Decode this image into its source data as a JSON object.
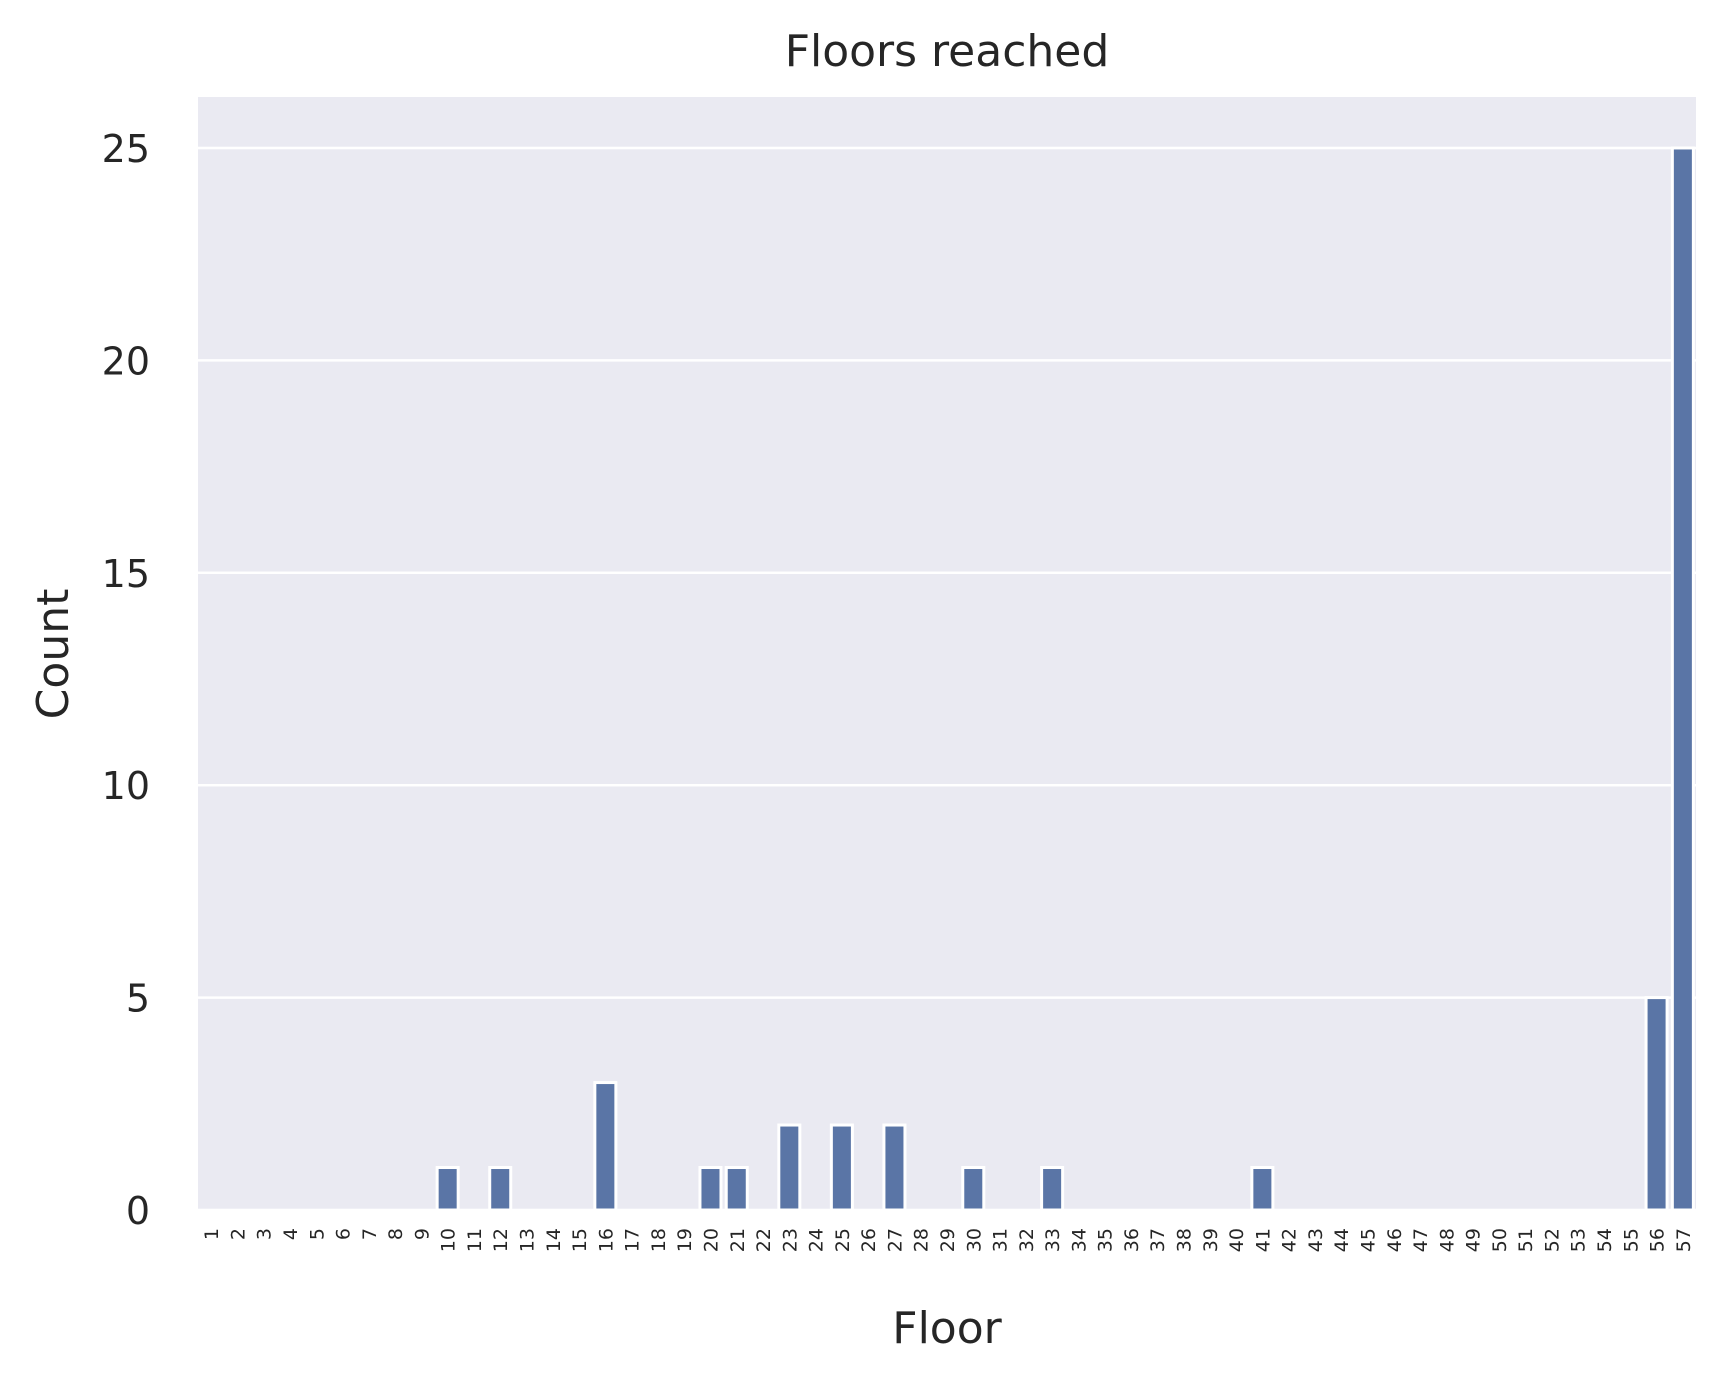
{
  "chart_data": {
    "type": "bar",
    "title": "Floors reached",
    "xlabel": "Floor",
    "ylabel": "Count",
    "ylim": [
      0,
      26.2
    ],
    "yticks": [
      0,
      5,
      10,
      15,
      20,
      25
    ],
    "grid": true,
    "categories": [
      "1",
      "2",
      "3",
      "4",
      "5",
      "6",
      "7",
      "8",
      "9",
      "10",
      "11",
      "12",
      "13",
      "14",
      "15",
      "16",
      "17",
      "18",
      "19",
      "20",
      "21",
      "22",
      "23",
      "24",
      "25",
      "26",
      "27",
      "28",
      "29",
      "30",
      "31",
      "32",
      "33",
      "34",
      "35",
      "36",
      "37",
      "38",
      "39",
      "40",
      "41",
      "42",
      "43",
      "44",
      "45",
      "46",
      "47",
      "48",
      "49",
      "50",
      "51",
      "52",
      "53",
      "54",
      "55",
      "56",
      "57"
    ],
    "values": [
      0,
      0,
      0,
      0,
      0,
      0,
      0,
      0,
      0,
      1,
      0,
      1,
      0,
      0,
      0,
      3,
      0,
      0,
      0,
      1,
      1,
      0,
      2,
      0,
      2,
      0,
      2,
      0,
      0,
      1,
      0,
      0,
      1,
      0,
      0,
      0,
      0,
      0,
      0,
      0,
      1,
      0,
      0,
      0,
      0,
      0,
      0,
      0,
      0,
      0,
      0,
      0,
      0,
      0,
      0,
      5,
      25
    ],
    "colors": {
      "bar": "#5a75a6",
      "background": "#eaeaf2",
      "grid": "#ffffff"
    }
  }
}
